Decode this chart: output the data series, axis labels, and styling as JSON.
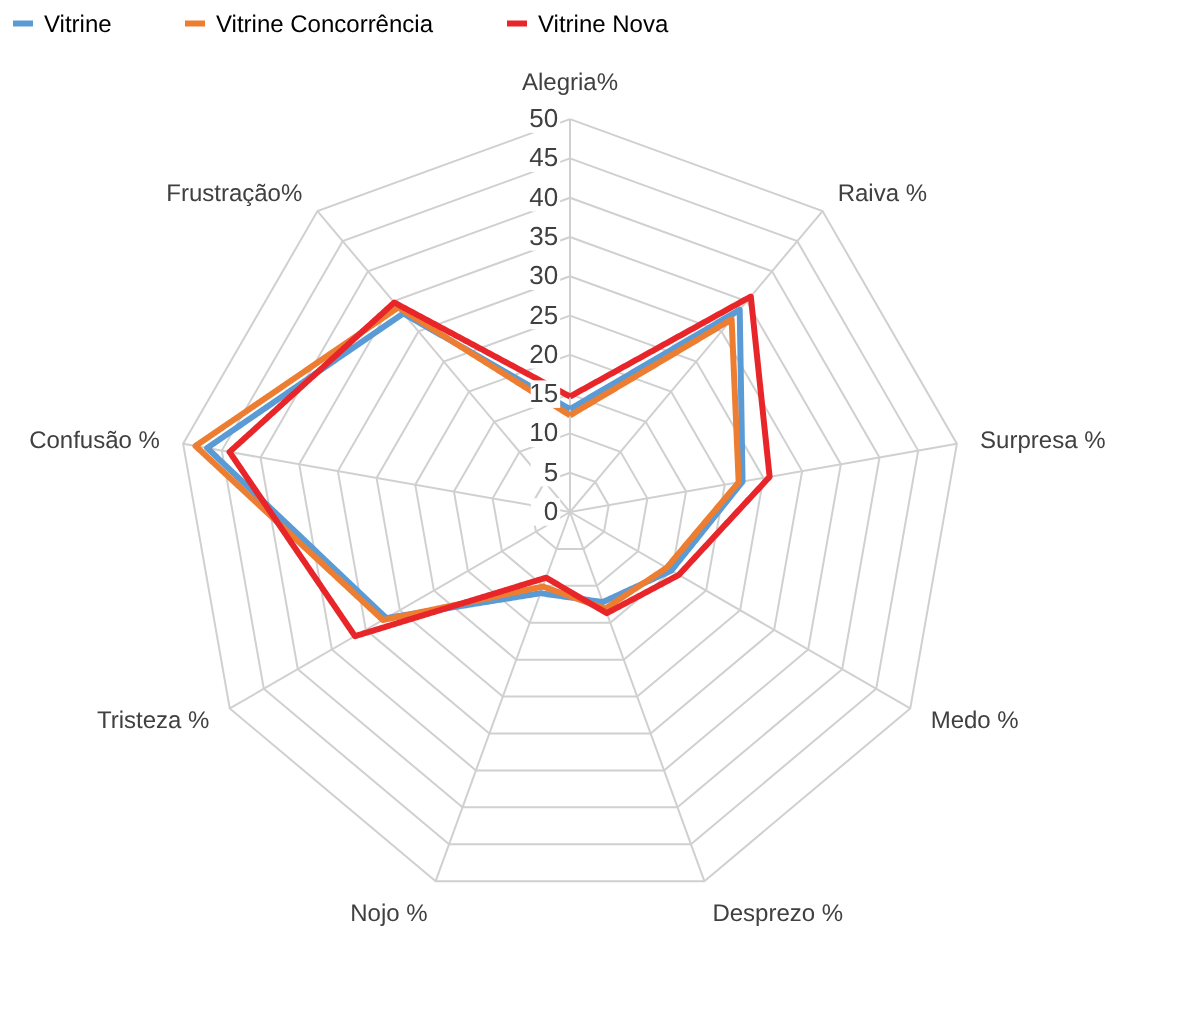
{
  "chart_data": {
    "type": "radar",
    "categories": [
      "Alegria%",
      "Raiva %",
      "Surpresa %",
      "Medo %",
      "Desprezo   %",
      "Nojo %",
      "Tristeza %",
      "Confusão  %",
      "Frustração%"
    ],
    "series": [
      {
        "name": "Vitrine",
        "color": "#5b9bd5",
        "values": [
          13.1,
          33.6,
          22.3,
          14.9,
          12.2,
          11.0,
          27.0,
          46.9,
          33.0
        ]
      },
      {
        "name": "Vitrine Concorrência",
        "color": "#ed7d31",
        "values": [
          12.3,
          32.0,
          21.8,
          14.2,
          13.1,
          10.1,
          27.5,
          48.4,
          34.0
        ]
      },
      {
        "name": "Vitrine Nova",
        "color": "#e8262a",
        "values": [
          14.7,
          35.8,
          25.8,
          16.0,
          13.7,
          8.9,
          31.6,
          44.0,
          34.8
        ]
      }
    ],
    "ylim": [
      0,
      50
    ],
    "yticks": [
      0,
      5,
      10,
      15,
      20,
      25,
      30,
      35,
      40,
      45,
      50
    ],
    "grid": true,
    "legend": "top",
    "line_style": "solid",
    "marker": "none"
  }
}
